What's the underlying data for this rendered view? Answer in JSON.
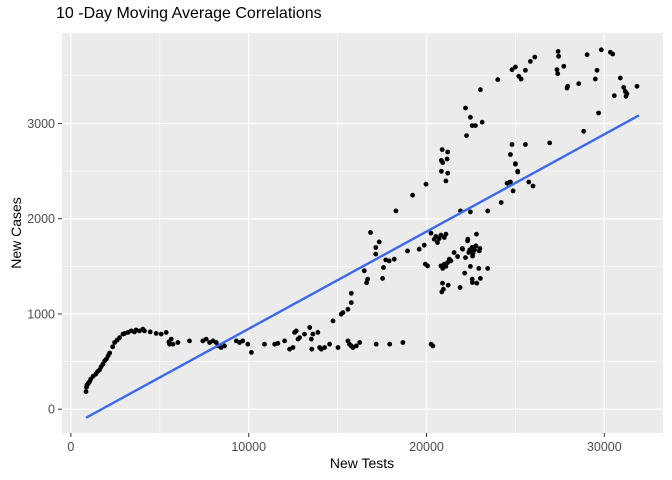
{
  "chart_data": {
    "type": "scatter",
    "title": "10 -Day Moving Average Correlations",
    "xlabel": "New Tests",
    "ylabel": "New Cases",
    "xlim": [
      -500,
      33300
    ],
    "ylim": [
      -250,
      3950
    ],
    "x_major_ticks": [
      0,
      10000,
      20000,
      30000
    ],
    "x_tick_labels": [
      "0",
      "10000",
      "20000",
      "30000"
    ],
    "x_minor_gridlines": [
      5000,
      15000,
      25000
    ],
    "y_major_ticks": [
      0,
      1000,
      2000,
      3000
    ],
    "y_tick_labels": [
      "0",
      "1000",
      "2000",
      "3000"
    ],
    "y_minor_gridlines": [
      500,
      1500,
      2500,
      3500
    ],
    "grid": true,
    "legend": false,
    "panel_bg": "#EBEBEB",
    "grid_color": "#FFFFFF",
    "tick_color": "#333333",
    "tick_text_color": "#4d4d4d",
    "point_color": "#000000",
    "trend_color": "#3C69EB",
    "trend_line": {
      "x1": 900,
      "y1": -85,
      "x2": 31900,
      "y2": 3080
    },
    "points": [
      [
        850,
        185
      ],
      [
        880,
        230
      ],
      [
        900,
        252
      ],
      [
        950,
        262
      ],
      [
        1000,
        277
      ],
      [
        1060,
        292
      ],
      [
        1120,
        316
      ],
      [
        1250,
        345
      ],
      [
        1400,
        368
      ],
      [
        1500,
        395
      ],
      [
        1620,
        415
      ],
      [
        1700,
        445
      ],
      [
        1800,
        472
      ],
      [
        1900,
        508
      ],
      [
        2000,
        528
      ],
      [
        2100,
        562
      ],
      [
        2180,
        590
      ],
      [
        2350,
        655
      ],
      [
        2460,
        700
      ],
      [
        2600,
        725
      ],
      [
        2740,
        752
      ],
      [
        2930,
        788
      ],
      [
        3020,
        796
      ],
      [
        3210,
        806
      ],
      [
        3390,
        822
      ],
      [
        3580,
        812
      ],
      [
        3670,
        832
      ],
      [
        3860,
        822
      ],
      [
        4050,
        840
      ],
      [
        4140,
        822
      ],
      [
        4460,
        812
      ],
      [
        4800,
        796
      ],
      [
        5080,
        788
      ],
      [
        5360,
        806
      ],
      [
        5510,
        707
      ],
      [
        5550,
        682
      ],
      [
        5640,
        736
      ],
      [
        5740,
        682
      ],
      [
        6020,
        700
      ],
      [
        6670,
        717
      ],
      [
        7420,
        717
      ],
      [
        7610,
        736
      ],
      [
        7800,
        700
      ],
      [
        7990,
        717
      ],
      [
        8170,
        700
      ],
      [
        8270,
        665
      ],
      [
        8450,
        648
      ],
      [
        8640,
        665
      ],
      [
        9300,
        717
      ],
      [
        9490,
        700
      ],
      [
        9660,
        717
      ],
      [
        9950,
        682
      ],
      [
        10150,
        596
      ],
      [
        10890,
        682
      ],
      [
        11460,
        682
      ],
      [
        11640,
        692
      ],
      [
        12020,
        717
      ],
      [
        12300,
        630
      ],
      [
        12490,
        648
      ],
      [
        12580,
        806
      ],
      [
        12670,
        822
      ],
      [
        12770,
        736
      ],
      [
        12860,
        752
      ],
      [
        13140,
        788
      ],
      [
        13430,
        858
      ],
      [
        13520,
        736
      ],
      [
        13610,
        788
      ],
      [
        13550,
        630
      ],
      [
        13890,
        806
      ],
      [
        13990,
        648
      ],
      [
        14080,
        630
      ],
      [
        14270,
        648
      ],
      [
        14550,
        682
      ],
      [
        15020,
        648
      ],
      [
        15580,
        717
      ],
      [
        15670,
        682
      ],
      [
        15770,
        665
      ],
      [
        15860,
        648
      ],
      [
        16050,
        665
      ],
      [
        16240,
        700
      ],
      [
        17170,
        682
      ],
      [
        17930,
        682
      ],
      [
        18670,
        700
      ],
      [
        20260,
        682
      ],
      [
        20360,
        665
      ],
      [
        14740,
        927
      ],
      [
        15200,
        997
      ],
      [
        15300,
        1014
      ],
      [
        15580,
        1049
      ],
      [
        15770,
        1119
      ],
      [
        15770,
        1217
      ],
      [
        16630,
        1328
      ],
      [
        16500,
        1453
      ],
      [
        16690,
        1365
      ],
      [
        16850,
        1855
      ],
      [
        17150,
        1628
      ],
      [
        17150,
        1698
      ],
      [
        17340,
        1757
      ],
      [
        17530,
        1373
      ],
      [
        17580,
        1488
      ],
      [
        17710,
        1568
      ],
      [
        17900,
        1557
      ],
      [
        18180,
        1575
      ],
      [
        18930,
        1662
      ],
      [
        19590,
        1680
      ],
      [
        19870,
        1722
      ],
      [
        19930,
        1523
      ],
      [
        20060,
        1505
      ],
      [
        20250,
        1848
      ],
      [
        20430,
        1785
      ],
      [
        20530,
        1813
      ],
      [
        20620,
        1750
      ],
      [
        20710,
        1792
      ],
      [
        20810,
        1827
      ],
      [
        21000,
        1803
      ],
      [
        21090,
        1837
      ],
      [
        21550,
        1645
      ],
      [
        21750,
        1603
      ],
      [
        22030,
        1680
      ],
      [
        22310,
        1767
      ],
      [
        22590,
        1698
      ],
      [
        22680,
        1680
      ],
      [
        22780,
        1715
      ],
      [
        22970,
        1662
      ],
      [
        21280,
        1575
      ],
      [
        21190,
        1540
      ],
      [
        21370,
        1558
      ],
      [
        21000,
        1523
      ],
      [
        20810,
        1505
      ],
      [
        20910,
        1478
      ],
      [
        21090,
        1499
      ],
      [
        21910,
        2082
      ],
      [
        22470,
        2072
      ],
      [
        23440,
        2082
      ],
      [
        22810,
        1837
      ],
      [
        22320,
        1785
      ],
      [
        22570,
        1700
      ],
      [
        22700,
        1673
      ],
      [
        22430,
        1673
      ],
      [
        22380,
        1645
      ],
      [
        22620,
        1638
      ],
      [
        23000,
        1687
      ],
      [
        22190,
        1592
      ],
      [
        22010,
        1687
      ],
      [
        22590,
        1608
      ],
      [
        22470,
        1499
      ],
      [
        22940,
        1478
      ],
      [
        23440,
        1478
      ],
      [
        22150,
        1429
      ],
      [
        22570,
        1365
      ],
      [
        23030,
        1373
      ],
      [
        20900,
        1323
      ],
      [
        21220,
        1302
      ],
      [
        20950,
        1260
      ],
      [
        20860,
        1232
      ],
      [
        21890,
        1278
      ],
      [
        22580,
        1330
      ],
      [
        22830,
        1323
      ],
      [
        18280,
        2082
      ],
      [
        19220,
        2247
      ],
      [
        19970,
        2362
      ],
      [
        20840,
        2498
      ],
      [
        20830,
        2612
      ],
      [
        20880,
        2726
      ],
      [
        20910,
        2590
      ],
      [
        21090,
        2397
      ],
      [
        21160,
        2627
      ],
      [
        21190,
        2478
      ],
      [
        21190,
        2701
      ],
      [
        24200,
        2170
      ],
      [
        24530,
        2372
      ],
      [
        24870,
        2292
      ],
      [
        24720,
        2386
      ],
      [
        25750,
        2386
      ],
      [
        25990,
        2344
      ],
      [
        24650,
        2380
      ],
      [
        25000,
        2572
      ],
      [
        25130,
        2491
      ],
      [
        24810,
        2779
      ],
      [
        24720,
        2674
      ],
      [
        25000,
        2579
      ],
      [
        25130,
        2499
      ],
      [
        25560,
        2779
      ],
      [
        26930,
        2796
      ],
      [
        28840,
        2918
      ],
      [
        22190,
        3163
      ],
      [
        22470,
        3065
      ],
      [
        22570,
        2978
      ],
      [
        22750,
        2978
      ],
      [
        23030,
        3355
      ],
      [
        23130,
        3013
      ],
      [
        22250,
        2873
      ],
      [
        24010,
        3460
      ],
      [
        24810,
        3565
      ],
      [
        25000,
        3593
      ],
      [
        25190,
        3495
      ],
      [
        25320,
        3467
      ],
      [
        25560,
        3558
      ],
      [
        25840,
        3652
      ],
      [
        26090,
        3697
      ],
      [
        27400,
        3757
      ],
      [
        27430,
        3705
      ],
      [
        27340,
        3565
      ],
      [
        27380,
        3523
      ],
      [
        27720,
        3600
      ],
      [
        27940,
        3390
      ],
      [
        28560,
        3418
      ],
      [
        29030,
        3722
      ],
      [
        29830,
        3774
      ],
      [
        30340,
        3747
      ],
      [
        30470,
        3729
      ],
      [
        29590,
        3558
      ],
      [
        29490,
        3467
      ],
      [
        27900,
        3372
      ],
      [
        30900,
        3477
      ],
      [
        31090,
        3379
      ],
      [
        31180,
        3337
      ],
      [
        31270,
        3313
      ],
      [
        31220,
        3285
      ],
      [
        31840,
        3390
      ],
      [
        30560,
        3292
      ],
      [
        29680,
        3110
      ]
    ]
  }
}
